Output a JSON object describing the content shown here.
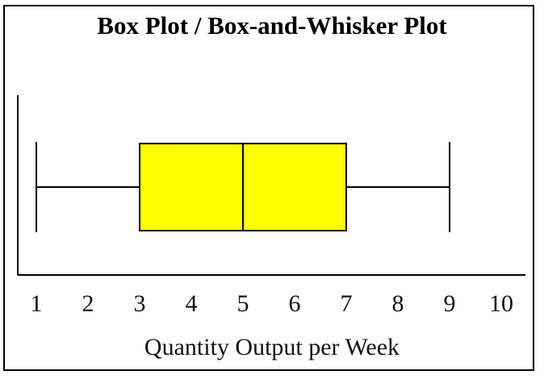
{
  "chart_data": {
    "type": "box",
    "title": "Box Plot / Box-and-Whisker Plot",
    "xlabel": "Quantity Output per Week",
    "ylabel": "",
    "xlim": [
      1,
      10
    ],
    "ticks": [
      "1",
      "2",
      "3",
      "4",
      "5",
      "6",
      "7",
      "8",
      "9",
      "10"
    ],
    "box": {
      "min": 1,
      "q1": 3,
      "median": 5,
      "q3": 7,
      "max": 9
    },
    "colors": {
      "box_fill": "#FFFF00",
      "stroke": "#000000"
    }
  }
}
